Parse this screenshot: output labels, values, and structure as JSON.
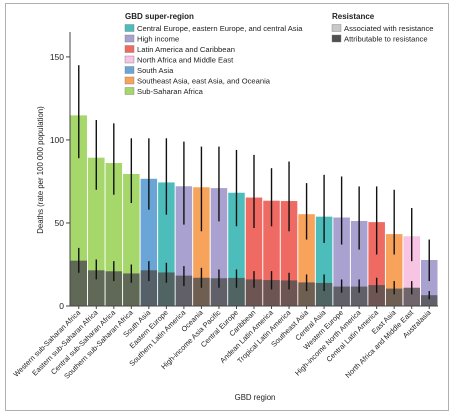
{
  "chart_data": {
    "type": "bar",
    "title": "",
    "xlabel": "GBD region",
    "ylabel": "Deaths (rate per 100 000 population)",
    "ylim": [
      0,
      165
    ],
    "yticks": [
      0,
      50,
      100,
      150
    ],
    "grid": false,
    "legend": {
      "position": "top-right",
      "super_region_title": "GBD super-region",
      "super_regions": [
        {
          "name": "Central Europe, eastern Europe, and central Asia",
          "color": "#4dbdbb"
        },
        {
          "name": "High income",
          "color": "#a9a2d0"
        },
        {
          "name": "Latin America and Caribbean",
          "color": "#ee6a62"
        },
        {
          "name": "North Africa and Middle East",
          "color": "#f7c4e4"
        },
        {
          "name": "South Asia",
          "color": "#6aa5d8"
        },
        {
          "name": "Southeast Asia, east Asia, and Oceania",
          "color": "#f8a35c"
        },
        {
          "name": "Sub-Saharan Africa",
          "color": "#a6d76a"
        }
      ],
      "resistance_title": "Resistance",
      "resistance": [
        {
          "name": "Associated with resistance",
          "color": "#c8c8c8"
        },
        {
          "name": "Attributable to resistance",
          "color": "#505050"
        }
      ]
    },
    "categories": [
      "Western sub-Saharan Africa",
      "Eastern sub-Saharan Africa",
      "Central sub-Saharan Africa",
      "Southern sub-Saharan Africa",
      "South Asia",
      "Eastern Europe",
      "Southern Latin America",
      "Oceania",
      "High-income Asia Pacific",
      "Central Europe",
      "Caribbean",
      "Andean Latin America",
      "Tropical Latin America",
      "Southeast Asia",
      "Central Asia",
      "Western Europe",
      "High-income North America",
      "Central Latin America",
      "East Asia",
      "North Africa and Middle East",
      "Australasia"
    ],
    "super_region_index": [
      6,
      6,
      6,
      6,
      4,
      0,
      1,
      5,
      1,
      0,
      2,
      2,
      2,
      5,
      0,
      1,
      1,
      2,
      5,
      3,
      1
    ],
    "series": [
      {
        "name": "Associated with resistance",
        "values": [
          114.8,
          89.3,
          86.1,
          79.5,
          76.6,
          74.4,
          72.1,
          71.5,
          71.0,
          68.2,
          65.3,
          63.4,
          63.2,
          55.3,
          53.8,
          53.3,
          51.2,
          50.5,
          43.3,
          42.0,
          27.7
        ],
        "error_low": [
          89.0,
          70.0,
          67.0,
          62.0,
          58.0,
          55.0,
          49.0,
          45.0,
          51.0,
          48.0,
          47.0,
          48.0,
          45.0,
          40.0,
          38.0,
          37.0,
          34.0,
          31.0,
          31.0,
          27.0,
          15.0
        ],
        "error_high": [
          145.0,
          112.0,
          110.0,
          101.0,
          101.0,
          101.0,
          99.0,
          96.0,
          96.0,
          94.0,
          91.0,
          83.0,
          87.0,
          74.0,
          79.0,
          78.0,
          72.0,
          72.0,
          70.0,
          59.0,
          40.0
        ]
      },
      {
        "name": "Attributable to resistance",
        "values": [
          27.3,
          21.5,
          20.9,
          19.6,
          21.5,
          20.2,
          18.3,
          17.0,
          16.7,
          16.9,
          16.0,
          15.6,
          15.4,
          14.2,
          13.9,
          11.7,
          11.7,
          12.6,
          10.5,
          11.0,
          6.5
        ],
        "error_low": [
          20.0,
          16.0,
          15.0,
          14.0,
          15.0,
          14.0,
          12.0,
          11.0,
          11.0,
          11.0,
          11.0,
          10.0,
          10.0,
          9.0,
          9.0,
          8.0,
          8.0,
          8.0,
          7.0,
          7.0,
          4.0
        ],
        "error_high": [
          35.0,
          28.0,
          27.0,
          25.0,
          27.0,
          26.0,
          24.0,
          23.0,
          22.0,
          22.0,
          21.0,
          21.0,
          20.0,
          19.0,
          19.0,
          16.0,
          16.0,
          17.0,
          15.0,
          15.0,
          9.0
        ]
      }
    ]
  }
}
